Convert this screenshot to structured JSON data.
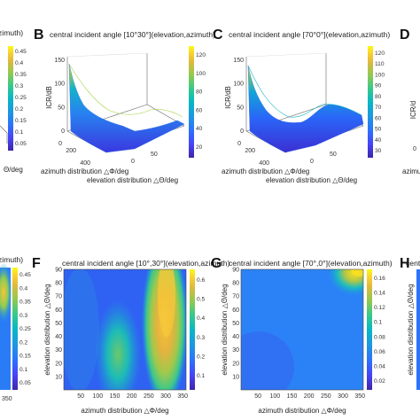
{
  "panels": [
    {
      "letter": "B",
      "title": "central incident angle [10°30°](elevation,azimuth)"
    },
    {
      "letter": "C",
      "title": "central incident angle [70°0°](elevation,azimuth)"
    },
    {
      "letter": "D",
      "title": ""
    },
    {
      "letter": "F",
      "title": "central incident angle [10°,30°](elevation,azimuth)"
    },
    {
      "letter": "G",
      "title": "central incident angle [70°,0°](elevation,azimuth)"
    },
    {
      "letter": "H",
      "title": ""
    }
  ],
  "partial_texts": {
    "top_left_title": "zimuth)",
    "top_left_axis": "Θ/deg",
    "bottom_left_title": "zimuth)",
    "top_right_ylabel": "ICR/d",
    "top_right_axis": "azimu",
    "bottom_right_ylabel": "elevation distribution △Θ/deg",
    "bottom_right_title": "centr"
  },
  "colors": {
    "parula": [
      "#3e26a8",
      "#4743f8",
      "#2c73fd",
      "#1b9ade",
      "#06b8c5",
      "#37c98b",
      "#93c950",
      "#e1b93c",
      "#fbd32e",
      "#f9fb15"
    ]
  },
  "chart_data": [
    {
      "panel": "A-partial",
      "type": "heatmap",
      "colorbar_ticks": [
        "0.45",
        "0.4",
        "0.35",
        "0.3",
        "0.25",
        "0.2",
        "0.15",
        "0.1",
        "0.05"
      ]
    },
    {
      "panel": "B",
      "type": "surface3d",
      "title": "central incident angle [10°30°](elevation,azimuth)",
      "zlabel": "ICR/dB",
      "xlabel": "azimuth distribution  △Φ/deg",
      "ylabel": "elevation distribution  △Θ/deg",
      "z_ticks": [
        "0",
        "50",
        "100",
        "150"
      ],
      "x_ticks": [
        "0",
        "200",
        "400"
      ],
      "y_ticks": [
        "0",
        "50"
      ],
      "zlim": [
        0,
        150
      ],
      "colorbar_ticks": [
        "120",
        "100",
        "80",
        "60",
        "40",
        "20"
      ]
    },
    {
      "panel": "C",
      "type": "surface3d",
      "title": "central incident angle [70°0°](elevation,azimuth)",
      "zlabel": "ICR/dB",
      "xlabel": "azimuth distribution  △Φ/deg",
      "ylabel": "elevation distribution  △Θ/deg",
      "z_ticks": [
        "0",
        "50",
        "100",
        "150"
      ],
      "x_ticks": [
        "0",
        "200",
        "400"
      ],
      "y_ticks": [
        "0",
        "50"
      ],
      "zlim": [
        0,
        150
      ],
      "colorbar_ticks": [
        "120",
        "110",
        "100",
        "90",
        "80",
        "70",
        "60",
        "50",
        "40",
        "30"
      ]
    },
    {
      "panel": "E-partial",
      "type": "heatmap",
      "colorbar_ticks": [
        "0.45",
        "0.4",
        "0.35",
        "0.3",
        "0.25",
        "0.2",
        "0.15",
        "0.1",
        "0.05"
      ],
      "x_ticks": [
        "350"
      ]
    },
    {
      "panel": "F",
      "type": "heatmap",
      "title": "central incident angle [10°,30°](elevation,azimuth)",
      "xlabel": "azimuth distribution  △Φ/deg",
      "ylabel": "elevation distribution  △Θ/deg",
      "x_ticks": [
        50,
        100,
        150,
        200,
        250,
        300,
        350
      ],
      "y_ticks": [
        10,
        20,
        30,
        40,
        50,
        60,
        70,
        80,
        90
      ],
      "xlim": [
        0,
        360
      ],
      "ylim": [
        0,
        90
      ],
      "colorbar_ticks": [
        "0.6",
        "0.5",
        "0.4",
        "0.3",
        "0.2",
        "0.1"
      ],
      "hotspots": [
        {
          "azimuth": 300,
          "elevation": 45,
          "level": 0.62
        },
        {
          "azimuth": 160,
          "elevation": 20,
          "level": 0.4
        }
      ]
    },
    {
      "panel": "G",
      "type": "heatmap",
      "title": "central incident angle [70°,0°](elevation,azimuth)",
      "xlabel": "azimuth distribution  △Φ/deg",
      "ylabel": "elevation distribution  △Θ/deg",
      "x_ticks": [
        50,
        100,
        150,
        200,
        250,
        300,
        350
      ],
      "y_ticks": [
        10,
        20,
        30,
        40,
        50,
        60,
        70,
        80,
        90
      ],
      "xlim": [
        0,
        360
      ],
      "ylim": [
        0,
        90
      ],
      "colorbar_ticks": [
        "0.16",
        "0.14",
        "0.12",
        "0.1",
        "0.08",
        "0.06",
        "0.04",
        "0.02"
      ],
      "hotspots": [
        {
          "azimuth": 350,
          "elevation": 90,
          "level": 0.15
        }
      ]
    }
  ]
}
